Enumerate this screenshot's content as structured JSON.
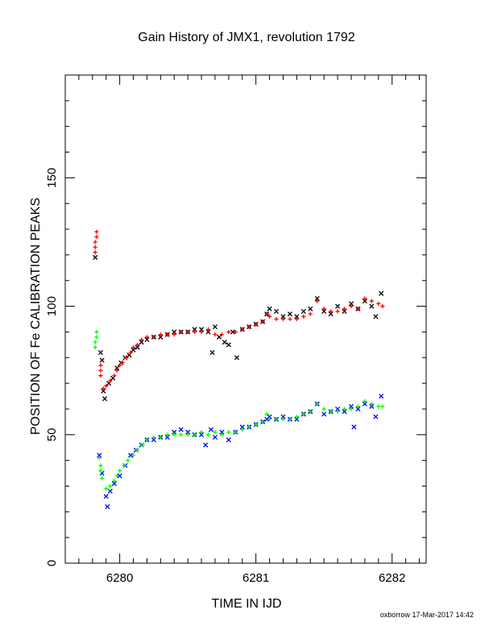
{
  "chart_data": {
    "type": "scatter",
    "title": "Gain History of JMX1, revolution 1792",
    "xlabel": "TIME IN IJD",
    "ylabel": "POSITION OF Fe CALIBRATION PEAKS",
    "xlim": [
      6279.6,
      6282.25
    ],
    "ylim": [
      0,
      190
    ],
    "x_ticks": [
      6280,
      6281,
      6282
    ],
    "x_tick_labels": [
      "6280",
      "6281",
      "6282"
    ],
    "y_ticks": [
      0,
      50,
      100,
      150
    ],
    "y_tick_labels": [
      "0",
      "50",
      "100",
      "150"
    ],
    "grid": false,
    "series": [
      {
        "marker": "x",
        "color": "#000000",
        "points": [
          [
            6279.82,
            119
          ],
          [
            6279.86,
            82
          ],
          [
            6279.87,
            79
          ],
          [
            6279.88,
            67
          ],
          [
            6279.89,
            64
          ],
          [
            6279.92,
            70
          ],
          [
            6279.95,
            72
          ],
          [
            6279.98,
            76
          ],
          [
            6280.01,
            78
          ],
          [
            6280.04,
            80
          ],
          [
            6280.07,
            81
          ],
          [
            6280.1,
            83
          ],
          [
            6280.13,
            84
          ],
          [
            6280.16,
            86
          ],
          [
            6280.2,
            87
          ],
          [
            6280.25,
            88
          ],
          [
            6280.3,
            88
          ],
          [
            6280.35,
            89
          ],
          [
            6280.4,
            90
          ],
          [
            6280.45,
            90
          ],
          [
            6280.5,
            90
          ],
          [
            6280.55,
            91
          ],
          [
            6280.6,
            91
          ],
          [
            6280.65,
            90
          ],
          [
            6280.68,
            82
          ],
          [
            6280.7,
            92
          ],
          [
            6280.73,
            88
          ],
          [
            6280.77,
            86
          ],
          [
            6280.8,
            85
          ],
          [
            6280.83,
            90
          ],
          [
            6280.86,
            80
          ],
          [
            6280.9,
            91
          ],
          [
            6280.95,
            92
          ],
          [
            6281,
            93
          ],
          [
            6281.05,
            94
          ],
          [
            6281.08,
            97
          ],
          [
            6281.1,
            99
          ],
          [
            6281.15,
            98
          ],
          [
            6281.2,
            96
          ],
          [
            6281.25,
            97
          ],
          [
            6281.3,
            96
          ],
          [
            6281.35,
            98
          ],
          [
            6281.4,
            99
          ],
          [
            6281.45,
            103
          ],
          [
            6281.5,
            98
          ],
          [
            6281.55,
            97
          ],
          [
            6281.6,
            100
          ],
          [
            6281.65,
            98
          ],
          [
            6281.7,
            101
          ],
          [
            6281.75,
            99
          ],
          [
            6281.8,
            102
          ],
          [
            6281.85,
            100
          ],
          [
            6281.88,
            96
          ],
          [
            6281.92,
            105
          ]
        ]
      },
      {
        "marker": "x",
        "color": "#0000ff",
        "points": [
          [
            6279.85,
            42
          ],
          [
            6279.87,
            35
          ],
          [
            6279.9,
            26
          ],
          [
            6279.91,
            22
          ],
          [
            6279.93,
            28
          ],
          [
            6279.96,
            31
          ],
          [
            6280,
            34
          ],
          [
            6280.04,
            38
          ],
          [
            6280.08,
            42
          ],
          [
            6280.12,
            44
          ],
          [
            6280.16,
            46
          ],
          [
            6280.2,
            48
          ],
          [
            6280.25,
            48
          ],
          [
            6280.3,
            49
          ],
          [
            6280.35,
            49
          ],
          [
            6280.4,
            51
          ],
          [
            6280.45,
            52
          ],
          [
            6280.5,
            51
          ],
          [
            6280.55,
            50
          ],
          [
            6280.6,
            50
          ],
          [
            6280.63,
            46
          ],
          [
            6280.67,
            52
          ],
          [
            6280.7,
            49
          ],
          [
            6280.75,
            51
          ],
          [
            6280.8,
            48
          ],
          [
            6280.85,
            51
          ],
          [
            6280.9,
            53
          ],
          [
            6280.95,
            53
          ],
          [
            6281,
            54
          ],
          [
            6281.05,
            55
          ],
          [
            6281.08,
            56
          ],
          [
            6281.1,
            57
          ],
          [
            6281.15,
            56
          ],
          [
            6281.2,
            57
          ],
          [
            6281.25,
            56
          ],
          [
            6281.3,
            56
          ],
          [
            6281.35,
            58
          ],
          [
            6281.4,
            59
          ],
          [
            6281.45,
            62
          ],
          [
            6281.5,
            58
          ],
          [
            6281.55,
            59
          ],
          [
            6281.6,
            60
          ],
          [
            6281.65,
            59
          ],
          [
            6281.7,
            61
          ],
          [
            6281.72,
            53
          ],
          [
            6281.75,
            60
          ],
          [
            6281.8,
            62
          ],
          [
            6281.85,
            61
          ],
          [
            6281.88,
            57
          ],
          [
            6281.92,
            65
          ]
        ]
      },
      {
        "marker": "+",
        "color": "#ff0000",
        "points": [
          [
            6279.82,
            121
          ],
          [
            6279.82,
            123
          ],
          [
            6279.82,
            125
          ],
          [
            6279.83,
            127
          ],
          [
            6279.83,
            129
          ],
          [
            6279.86,
            73
          ],
          [
            6279.86,
            75
          ],
          [
            6279.86,
            77
          ],
          [
            6279.88,
            68
          ],
          [
            6279.9,
            69
          ],
          [
            6279.93,
            71
          ],
          [
            6279.96,
            73
          ],
          [
            6279.98,
            75
          ],
          [
            6280,
            77
          ],
          [
            6280.02,
            78
          ],
          [
            6280.05,
            80
          ],
          [
            6280.08,
            82
          ],
          [
            6280.1,
            84
          ],
          [
            6280.13,
            85
          ],
          [
            6280.16,
            87
          ],
          [
            6280.2,
            88
          ],
          [
            6280.25,
            88
          ],
          [
            6280.3,
            89
          ],
          [
            6280.35,
            89
          ],
          [
            6280.4,
            89
          ],
          [
            6280.45,
            90
          ],
          [
            6280.5,
            90
          ],
          [
            6280.55,
            90
          ],
          [
            6280.6,
            90
          ],
          [
            6280.65,
            91
          ],
          [
            6280.7,
            89
          ],
          [
            6280.75,
            89
          ],
          [
            6280.8,
            90
          ],
          [
            6280.85,
            90
          ],
          [
            6280.9,
            91
          ],
          [
            6280.95,
            92
          ],
          [
            6281,
            93
          ],
          [
            6281.05,
            94
          ],
          [
            6281.08,
            97
          ],
          [
            6281.1,
            96
          ],
          [
            6281.15,
            95
          ],
          [
            6281.2,
            95
          ],
          [
            6281.25,
            95
          ],
          [
            6281.3,
            95
          ],
          [
            6281.35,
            96
          ],
          [
            6281.4,
            97
          ],
          [
            6281.45,
            102
          ],
          [
            6281.5,
            99
          ],
          [
            6281.55,
            98
          ],
          [
            6281.6,
            98
          ],
          [
            6281.65,
            99
          ],
          [
            6281.7,
            100
          ],
          [
            6281.75,
            99
          ],
          [
            6281.8,
            103
          ],
          [
            6281.85,
            102
          ],
          [
            6281.9,
            101
          ],
          [
            6281.93,
            100
          ]
        ]
      },
      {
        "marker": "+",
        "color": "#00ff00",
        "points": [
          [
            6279.82,
            84
          ],
          [
            6279.82,
            86
          ],
          [
            6279.83,
            88
          ],
          [
            6279.83,
            90
          ],
          [
            6279.85,
            41
          ],
          [
            6279.86,
            38
          ],
          [
            6279.86,
            36
          ],
          [
            6279.87,
            33
          ],
          [
            6279.9,
            29
          ],
          [
            6279.93,
            30
          ],
          [
            6279.96,
            32
          ],
          [
            6279.98,
            34
          ],
          [
            6280,
            36
          ],
          [
            6280.03,
            38
          ],
          [
            6280.06,
            40
          ],
          [
            6280.1,
            42
          ],
          [
            6280.13,
            44
          ],
          [
            6280.17,
            46
          ],
          [
            6280.2,
            48
          ],
          [
            6280.25,
            49
          ],
          [
            6280.3,
            49
          ],
          [
            6280.35,
            50
          ],
          [
            6280.4,
            50
          ],
          [
            6280.45,
            50
          ],
          [
            6280.5,
            50
          ],
          [
            6280.55,
            50
          ],
          [
            6280.6,
            51
          ],
          [
            6280.65,
            50
          ],
          [
            6280.7,
            51
          ],
          [
            6280.75,
            50
          ],
          [
            6280.8,
            51
          ],
          [
            6280.85,
            51
          ],
          [
            6280.9,
            52
          ],
          [
            6280.95,
            53
          ],
          [
            6281,
            54
          ],
          [
            6281.05,
            55
          ],
          [
            6281.08,
            58
          ],
          [
            6281.1,
            56
          ],
          [
            6281.15,
            56
          ],
          [
            6281.2,
            56
          ],
          [
            6281.25,
            56
          ],
          [
            6281.3,
            57
          ],
          [
            6281.35,
            58
          ],
          [
            6281.4,
            59
          ],
          [
            6281.45,
            62
          ],
          [
            6281.5,
            60
          ],
          [
            6281.55,
            59
          ],
          [
            6281.6,
            59
          ],
          [
            6281.65,
            60
          ],
          [
            6281.7,
            60
          ],
          [
            6281.75,
            61
          ],
          [
            6281.8,
            63
          ],
          [
            6281.85,
            62
          ],
          [
            6281.9,
            61
          ],
          [
            6281.93,
            61
          ]
        ]
      }
    ]
  },
  "footer": "oxborrow 17-Mar-2017 14:42"
}
